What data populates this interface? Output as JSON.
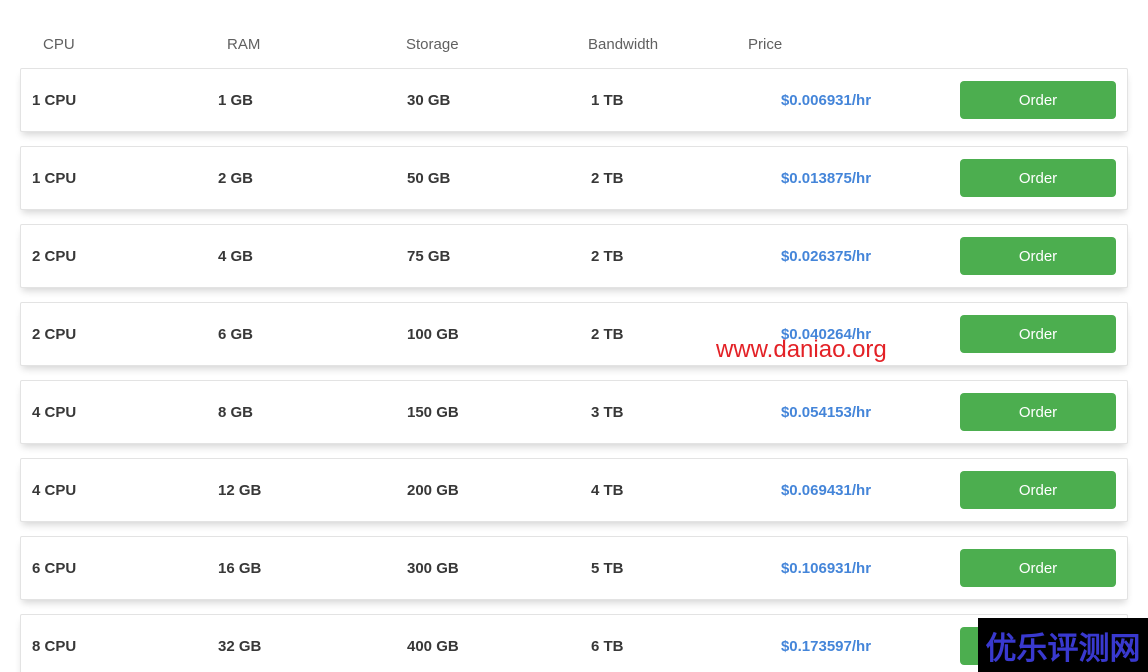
{
  "table": {
    "headers": [
      "CPU",
      "RAM",
      "Storage",
      "Bandwidth",
      "Price"
    ],
    "order_button_label": "Order",
    "rows": [
      {
        "cpu": "1 CPU",
        "ram": "1 GB",
        "storage": "30 GB",
        "bandwidth": "1 TB",
        "price": "$0.006931/hr"
      },
      {
        "cpu": "1 CPU",
        "ram": "2 GB",
        "storage": "50 GB",
        "bandwidth": "2 TB",
        "price": "$0.013875/hr"
      },
      {
        "cpu": "2 CPU",
        "ram": "4 GB",
        "storage": "75 GB",
        "bandwidth": "2 TB",
        "price": "$0.026375/hr"
      },
      {
        "cpu": "2 CPU",
        "ram": "6 GB",
        "storage": "100 GB",
        "bandwidth": "2 TB",
        "price": "$0.040264/hr"
      },
      {
        "cpu": "4 CPU",
        "ram": "8 GB",
        "storage": "150 GB",
        "bandwidth": "3 TB",
        "price": "$0.054153/hr"
      },
      {
        "cpu": "4 CPU",
        "ram": "12 GB",
        "storage": "200 GB",
        "bandwidth": "4 TB",
        "price": "$0.069431/hr"
      },
      {
        "cpu": "6 CPU",
        "ram": "16 GB",
        "storage": "300 GB",
        "bandwidth": "5 TB",
        "price": "$0.106931/hr"
      },
      {
        "cpu": "8 CPU",
        "ram": "32 GB",
        "storage": "400 GB",
        "bandwidth": "6 TB",
        "price": "$0.173597/hr"
      }
    ]
  },
  "watermarks": {
    "site_text": "www.daniao.org",
    "badge_text": "优乐评测网"
  },
  "colors": {
    "price_blue": "#4485d9",
    "button_green": "#4cae4f",
    "watermark_red": "#e32126",
    "badge_text_blue": "#3939cf",
    "badge_background": "#000000",
    "card_border": "#e3e3e3"
  }
}
